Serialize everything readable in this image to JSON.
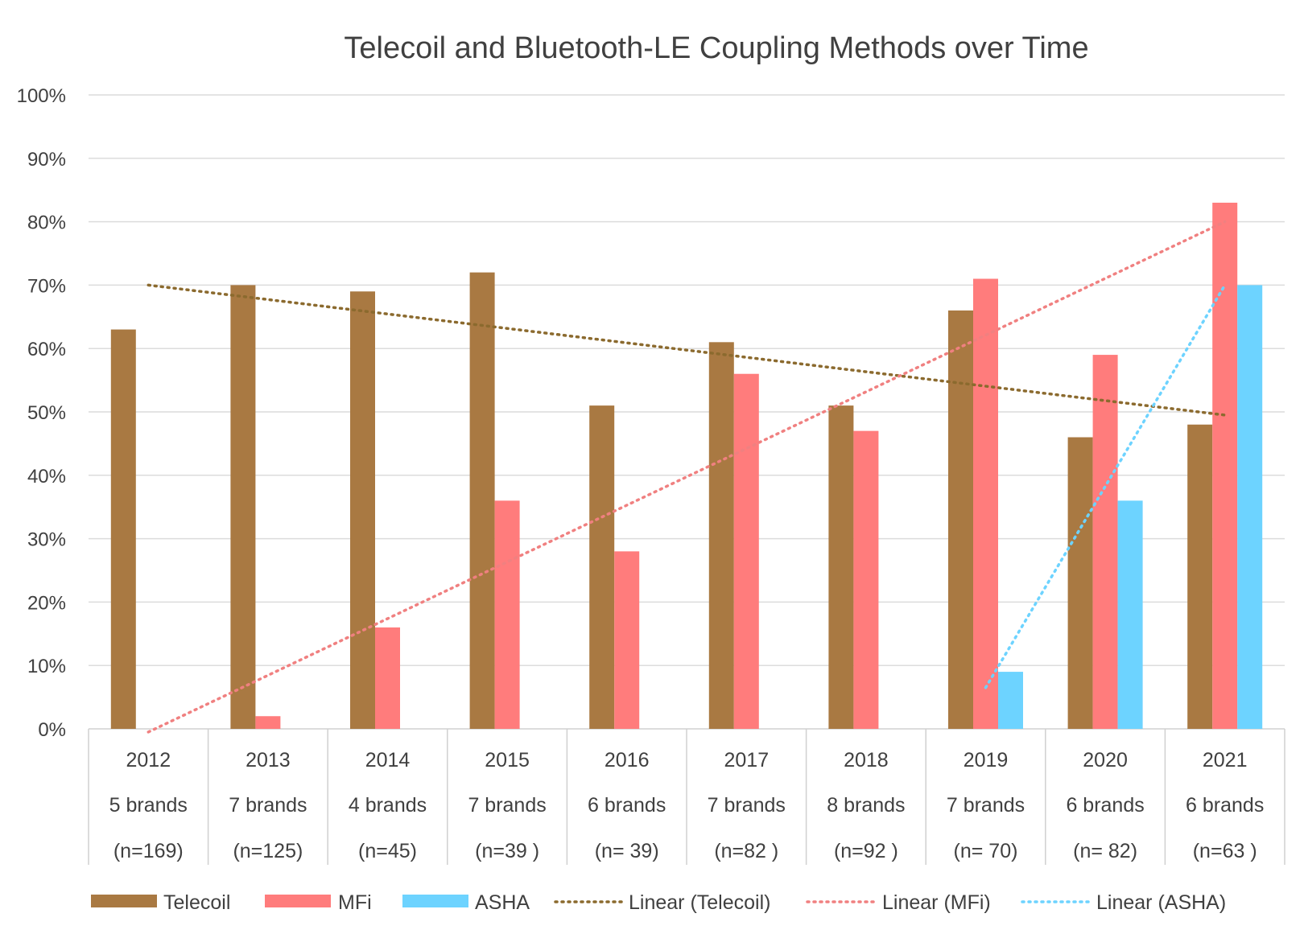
{
  "chart_data": {
    "type": "bar",
    "title": "Telecoil and Bluetooth-LE Coupling Methods over Time",
    "xlabel": "",
    "ylabel": "",
    "ylim": [
      0,
      100
    ],
    "yticks": [
      "0%",
      "10%",
      "20%",
      "30%",
      "40%",
      "50%",
      "60%",
      "70%",
      "80%",
      "90%",
      "100%"
    ],
    "grid": true,
    "legend_position": "bottom",
    "categories": [
      {
        "year": "2012",
        "brands": "5 brands",
        "n": "(n=169)"
      },
      {
        "year": "2013",
        "brands": "7 brands",
        "n": "(n=125)"
      },
      {
        "year": "2014",
        "brands": "4 brands",
        "n": "(n=45)"
      },
      {
        "year": "2015",
        "brands": "7 brands",
        "n": "(n=39 )"
      },
      {
        "year": "2016",
        "brands": "6 brands",
        "n": "(n= 39)"
      },
      {
        "year": "2017",
        "brands": "7 brands",
        "n": "(n=82 )"
      },
      {
        "year": "2018",
        "brands": "8 brands",
        "n": "(n=92 )"
      },
      {
        "year": "2019",
        "brands": "7 brands",
        "n": "(n= 70)"
      },
      {
        "year": "2020",
        "brands": "6 brands",
        "n": "(n= 82)"
      },
      {
        "year": "2021",
        "brands": "6 brands",
        "n": "(n=63 )"
      }
    ],
    "series": [
      {
        "name": "Telecoil",
        "color": "#A97942",
        "values": [
          63,
          70,
          69,
          72,
          51,
          61,
          51,
          66,
          46,
          48
        ]
      },
      {
        "name": "MFi",
        "color": "#FF7C7C",
        "values": [
          0,
          2,
          16,
          36,
          28,
          56,
          47,
          71,
          59,
          83
        ]
      },
      {
        "name": "ASHA",
        "color": "#6DD3FF",
        "values": [
          0,
          0,
          0,
          0,
          0,
          0,
          0,
          9,
          36,
          70
        ]
      }
    ],
    "trendlines": [
      {
        "name": "Linear (Telecoil)",
        "color": "#8B6A2E",
        "from": {
          "category": "2012",
          "value": 70
        },
        "to": {
          "category": "2021",
          "value": 49.5
        }
      },
      {
        "name": "Linear (MFi)",
        "color": "#F08080",
        "from": {
          "category": "2012",
          "value": -0.5
        },
        "to": {
          "category": "2021",
          "value": 80
        }
      },
      {
        "name": "Linear (ASHA)",
        "color": "#6DD3FF",
        "from": {
          "category": "2019",
          "value": 6.5
        },
        "to": {
          "category": "2021",
          "value": 70
        }
      }
    ],
    "legend": [
      "Telecoil",
      "MFi",
      "ASHA",
      "Linear (Telecoil)",
      "Linear (MFi)",
      "Linear (ASHA)"
    ]
  }
}
